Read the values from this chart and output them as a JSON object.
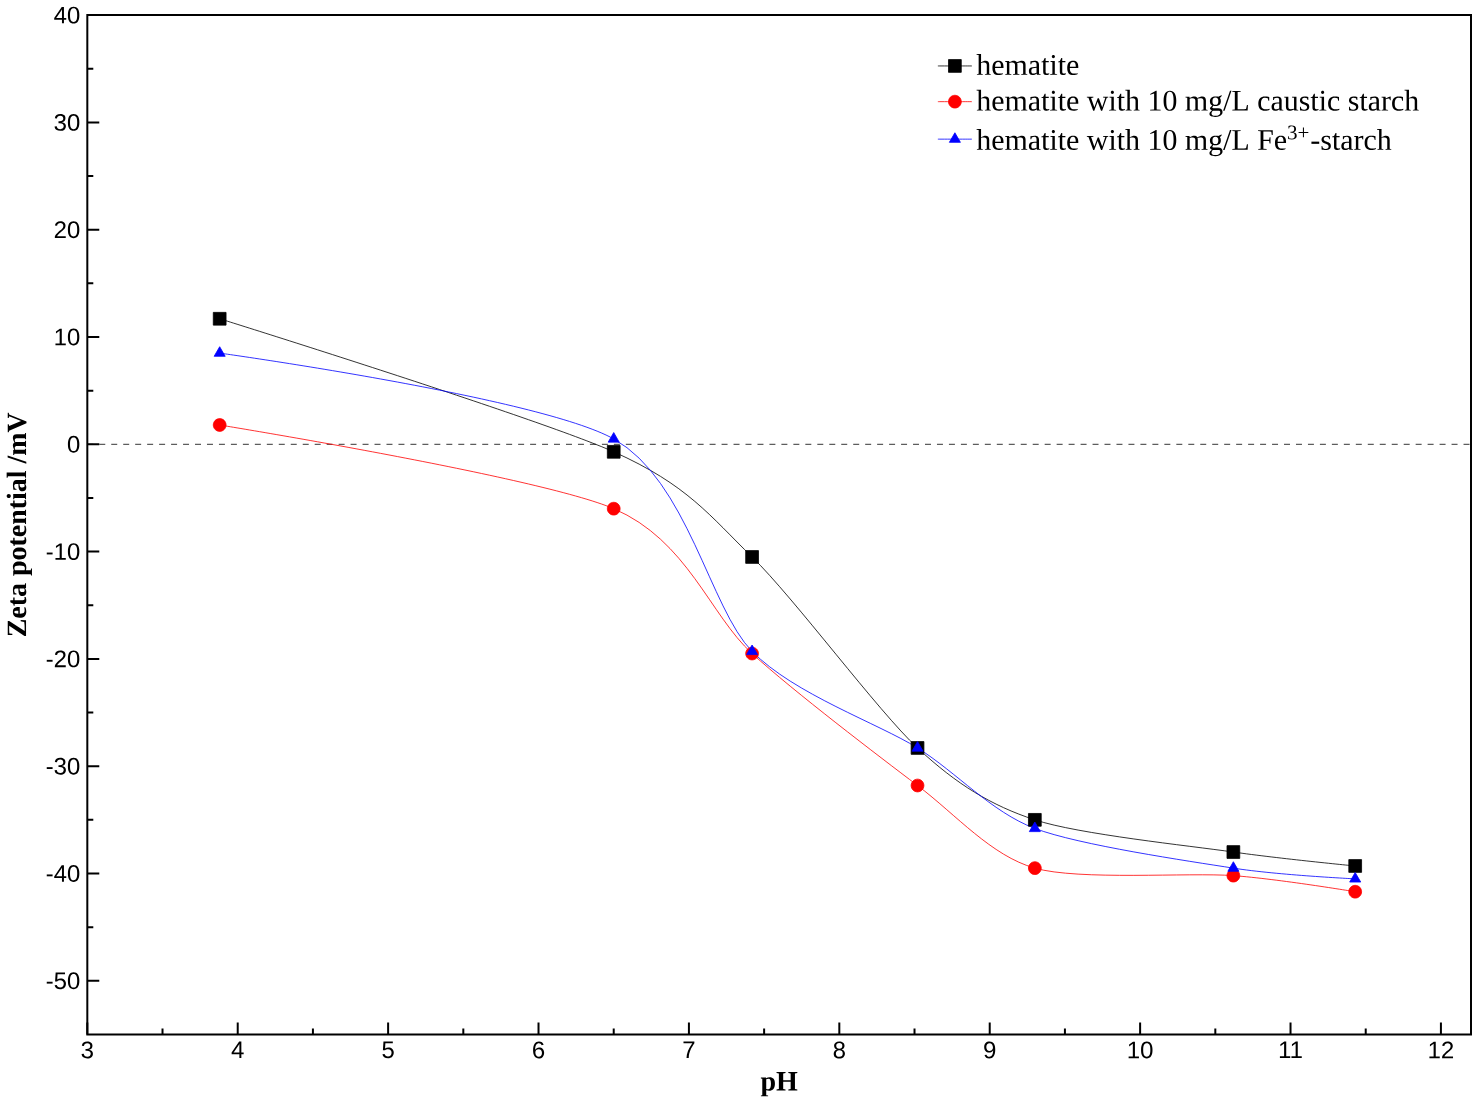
{
  "chart_data": {
    "type": "line",
    "xlabel": "pH",
    "ylabel": "Zeta potential /mV",
    "x": [
      3.88,
      6.5,
      7.42,
      8.52,
      9.3,
      10.62,
      11.43
    ],
    "series": [
      {
        "name": "hematite",
        "color": "#000000",
        "marker": "square",
        "values": [
          11.7,
          -0.7,
          -10.5,
          -28.3,
          -35,
          -38,
          -39.3
        ]
      },
      {
        "name": "hematite with 10 mg/L caustic starch",
        "color": "#ff0000",
        "marker": "circle",
        "values": [
          1.8,
          -6,
          -19.5,
          -31.8,
          -39.5,
          -40.2,
          -41.7
        ]
      },
      {
        "name": "hematite with 10 mg/L Fe$^{3+}$-starch",
        "color": "#0000ff",
        "marker": "triangle",
        "values": [
          8.5,
          0.5,
          -19.3,
          -28.3,
          -35.8,
          -39.5,
          -40.5
        ]
      }
    ],
    "xlim": [
      3,
      12.2
    ],
    "ylim": [
      -55,
      40
    ],
    "xticks": [
      3,
      4,
      5,
      6,
      7,
      8,
      9,
      10,
      11,
      12
    ],
    "yticks": [
      -50,
      -40,
      -30,
      -20,
      -10,
      0,
      10,
      20,
      30,
      40
    ],
    "ref_lines": [
      {
        "axis": "y",
        "value": 0,
        "color": "#000000",
        "line_style": "dashed"
      }
    ],
    "legend": "top right",
    "grid": false,
    "line_style": "solid"
  }
}
